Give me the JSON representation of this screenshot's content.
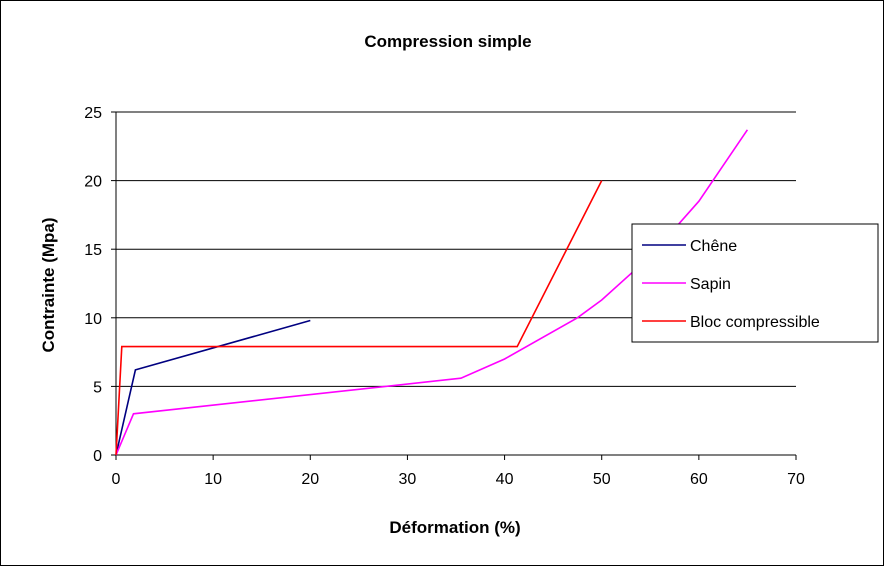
{
  "chart_data": {
    "type": "line",
    "title": "Compression simple",
    "xlabel": "Déformation (%)",
    "ylabel": "Contrainte (Mpa)",
    "xlim": [
      0,
      70
    ],
    "ylim": [
      0,
      25
    ],
    "xticks": [
      0,
      10,
      20,
      30,
      40,
      50,
      60,
      70
    ],
    "yticks": [
      0,
      5,
      10,
      15,
      20,
      25
    ],
    "grid": "horizontal",
    "legend_position": "right",
    "series": [
      {
        "name": "Chêne",
        "color": "#000080",
        "points": [
          [
            0,
            0
          ],
          [
            2,
            6.2
          ],
          [
            20,
            9.8
          ]
        ]
      },
      {
        "name": "Sapin",
        "color": "#ff00ff",
        "points": [
          [
            0,
            0
          ],
          [
            1.8,
            3
          ],
          [
            35.5,
            5.6
          ],
          [
            40,
            7
          ],
          [
            47.5,
            10
          ],
          [
            50,
            11.3
          ],
          [
            55,
            14.5
          ],
          [
            60,
            18.5
          ],
          [
            65,
            23.7
          ]
        ]
      },
      {
        "name": "Bloc compressible",
        "color": "#ff0000",
        "points": [
          [
            0,
            0
          ],
          [
            0.6,
            7.9
          ],
          [
            41.3,
            7.9
          ],
          [
            50,
            20
          ]
        ]
      }
    ]
  }
}
